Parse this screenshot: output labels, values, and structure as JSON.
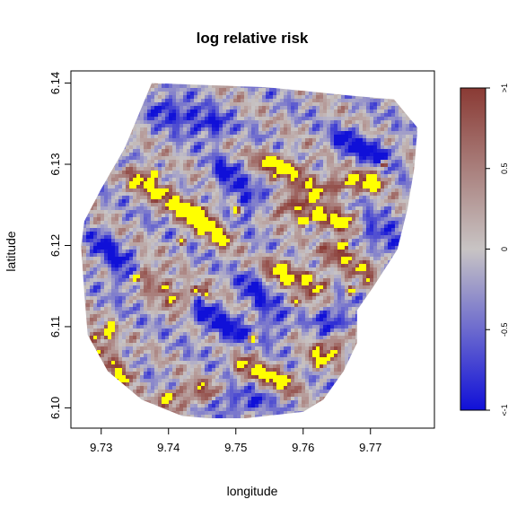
{
  "chart_data": {
    "type": "heatmap",
    "title": "log relative risk",
    "xlabel": "longitude",
    "ylabel": "latitude",
    "xlim": [
      9.7255,
      9.7795
    ],
    "ylim": [
      6.0975,
      6.1415
    ],
    "x_ticks": [
      {
        "value": 9.73,
        "label": "9.73"
      },
      {
        "value": 9.74,
        "label": "9.74"
      },
      {
        "value": 9.75,
        "label": "9.75"
      },
      {
        "value": 9.76,
        "label": "9.76"
      },
      {
        "value": 9.77,
        "label": "9.77"
      }
    ],
    "y_ticks": [
      {
        "value": 6.1,
        "label": "6.10"
      },
      {
        "value": 6.11,
        "label": "6.11"
      },
      {
        "value": 6.12,
        "label": "6.12"
      },
      {
        "value": 6.13,
        "label": "6.13"
      },
      {
        "value": 6.14,
        "label": "6.14"
      }
    ],
    "region_boundary": [
      [
        9.7375,
        6.14
      ],
      [
        9.7545,
        6.1395
      ],
      [
        9.7665,
        6.1385
      ],
      [
        9.7735,
        6.138
      ],
      [
        9.777,
        6.1345
      ],
      [
        9.7765,
        6.1295
      ],
      [
        9.7755,
        6.1245
      ],
      [
        9.774,
        6.1195
      ],
      [
        9.7705,
        6.115
      ],
      [
        9.768,
        6.112
      ],
      [
        9.768,
        6.108
      ],
      [
        9.766,
        6.1045
      ],
      [
        9.763,
        6.101
      ],
      [
        9.76,
        6.0995
      ],
      [
        9.749,
        6.0985
      ],
      [
        9.742,
        6.099
      ],
      [
        9.736,
        6.101
      ],
      [
        9.731,
        6.1045
      ],
      [
        9.728,
        6.109
      ],
      [
        9.7275,
        6.114
      ],
      [
        9.727,
        6.12
      ],
      [
        9.7275,
        6.123
      ],
      [
        9.73,
        6.127
      ],
      [
        9.7335,
        6.132
      ],
      [
        9.7375,
        6.14
      ]
    ],
    "ridges": [
      {
        "from": [
          9.7355,
          6.1285
        ],
        "to": [
          9.7445,
          6.1235
        ],
        "value": 0.85
      },
      {
        "from": [
          9.7445,
          6.1235
        ],
        "to": [
          9.748,
          6.121
        ],
        "value": 0.8
      },
      {
        "from": [
          9.7575,
          6.125
        ],
        "to": [
          9.766,
          6.1225
        ],
        "value": 0.85
      },
      {
        "from": [
          9.7615,
          6.127
        ],
        "to": [
          9.7705,
          6.128
        ],
        "value": 0.75
      },
      {
        "from": [
          9.7545,
          6.1305
        ],
        "to": [
          9.7595,
          6.129
        ],
        "value": 0.8
      },
      {
        "from": [
          9.7365,
          6.1165
        ],
        "to": [
          9.7425,
          6.113
        ],
        "value": 0.7
      },
      {
        "from": [
          9.756,
          6.1175
        ],
        "to": [
          9.7625,
          6.115
        ],
        "value": 0.8
      },
      {
        "from": [
          9.7645,
          6.1195
        ],
        "to": [
          9.77,
          6.117
        ],
        "value": 0.7
      },
      {
        "from": [
          9.729,
          6.1085
        ],
        "to": [
          9.7335,
          6.104
        ],
        "value": 0.7
      },
      {
        "from": [
          9.751,
          6.105
        ],
        "to": [
          9.7575,
          6.103
        ],
        "value": 0.75
      },
      {
        "from": [
          9.762,
          6.106
        ],
        "to": [
          9.767,
          6.109
        ],
        "value": 0.7
      },
      {
        "from": [
          9.74,
          6.101
        ],
        "to": [
          9.746,
          6.102
        ],
        "value": 0.6
      }
    ],
    "valleys": [
      {
        "from": [
          9.739,
          6.137
        ],
        "to": [
          9.747,
          6.1345
        ],
        "value": -0.8
      },
      {
        "from": [
          9.748,
          6.129
        ],
        "to": [
          9.752,
          6.125
        ],
        "value": -0.7
      },
      {
        "from": [
          9.766,
          6.133
        ],
        "to": [
          9.772,
          6.131
        ],
        "value": -0.75
      },
      {
        "from": [
          9.73,
          6.12
        ],
        "to": [
          9.734,
          6.116
        ],
        "value": -0.7
      },
      {
        "from": [
          9.744,
          6.112
        ],
        "to": [
          9.75,
          6.109
        ],
        "value": -0.75
      },
      {
        "from": [
          9.764,
          6.111
        ],
        "to": [
          9.7675,
          6.11
        ],
        "value": -0.8
      },
      {
        "from": [
          9.752,
          6.115
        ],
        "to": [
          9.756,
          6.11
        ],
        "value": -0.6
      },
      {
        "from": [
          9.77,
          6.122
        ],
        "to": [
          9.774,
          6.12
        ],
        "value": -0.7
      },
      {
        "from": [
          9.748,
          6.101
        ],
        "to": [
          9.753,
          6.1005
        ],
        "value": -0.6
      }
    ],
    "high_spots": [
      [
        9.7525,
        6.1085
      ],
      [
        9.7565,
        6.13
      ],
      [
        9.744,
        6.1145
      ],
      [
        9.76,
        6.123
      ],
      [
        9.7625,
        6.1235
      ],
      [
        9.74,
        6.1015
      ],
      [
        9.767,
        6.1145
      ],
      [
        9.7455,
        6.114
      ],
      [
        9.77,
        6.1275
      ],
      [
        9.731,
        6.109
      ],
      [
        9.738,
        6.129
      ],
      [
        9.75,
        6.1245
      ],
      [
        9.735,
        6.116
      ],
      [
        9.759,
        6.113
      ],
      [
        9.742,
        6.1205
      ],
      [
        9.757,
        6.116
      ],
      [
        9.7315,
        6.11
      ],
      [
        9.772,
        6.13
      ],
      [
        9.7605,
        6.116
      ],
      [
        9.766,
        6.12
      ]
    ],
    "color_scale": {
      "low": "#1010d8",
      "mid": "#c8c4c4",
      "high": "#8a3a34",
      "overflow": "#ffff00",
      "range": [
        -1,
        1
      ],
      "ticks": [
        {
          "value": -1,
          "label": "<-1"
        },
        {
          "value": -0.5,
          "label": "-0.5"
        },
        {
          "value": 0,
          "label": "0"
        },
        {
          "value": 0.5,
          "label": "0.5"
        },
        {
          "value": 1,
          "label": ">1"
        }
      ]
    }
  }
}
